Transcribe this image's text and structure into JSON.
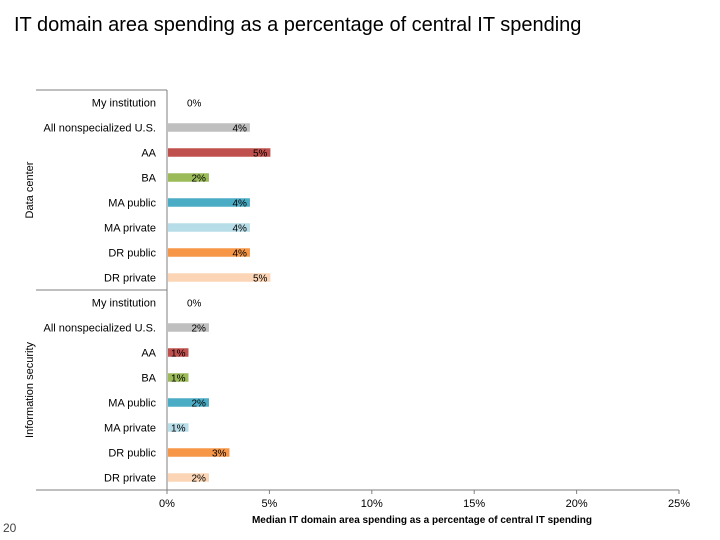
{
  "slide": {
    "title": "IT domain area spending as a percentage of central IT spending",
    "page_number": "20"
  },
  "chart_data": {
    "type": "bar",
    "orientation": "horizontal",
    "title": "",
    "xlabel": "Median IT domain area spending as a percentage of central IT spending",
    "xlim": [
      0,
      25
    ],
    "x_ticks": [
      "0%",
      "5%",
      "10%",
      "15%",
      "20%",
      "25%"
    ],
    "grid": false,
    "groups": [
      {
        "name": "Data center",
        "categories": [
          "My institution",
          "All nonspecialized U.S.",
          "AA",
          "BA",
          "MA public",
          "MA private",
          "DR public",
          "DR private"
        ],
        "values": [
          0,
          4,
          5,
          2,
          4,
          4,
          4,
          5
        ],
        "labels": [
          "0%",
          "4%",
          "5%",
          "2%",
          "4%",
          "4%",
          "4%",
          "5%"
        ]
      },
      {
        "name": "Information security",
        "categories": [
          "My institution",
          "All nonspecialized U.S.",
          "AA",
          "BA",
          "MA public",
          "MA private",
          "DR public",
          "DR private"
        ],
        "values": [
          0,
          2,
          1,
          1,
          2,
          1,
          3,
          2
        ],
        "labels": [
          "0%",
          "2%",
          "1%",
          "1%",
          "2%",
          "1%",
          "3%",
          "2%"
        ]
      }
    ],
    "colors": {
      "My institution": "#ffffff",
      "All nonspecialized U.S.": "#bfbfbf",
      "AA": "#c0504d",
      "BA": "#9bbb59",
      "MA public": "#4bacc6",
      "MA private": "#b7dde8",
      "DR public": "#f79646",
      "DR private": "#fbd5b5",
      "axis": "#7f7f7f"
    }
  }
}
